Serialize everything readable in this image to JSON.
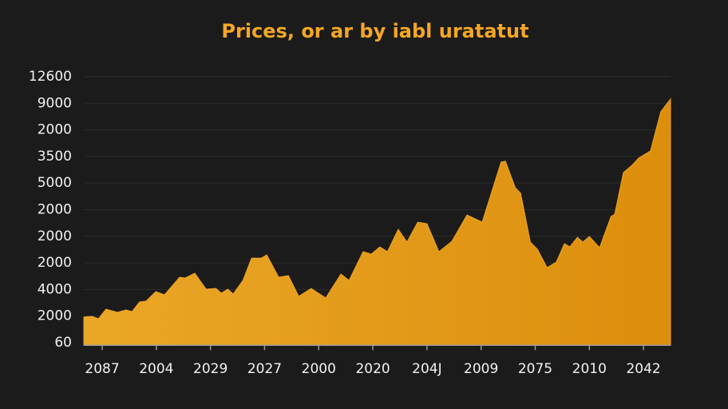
{
  "chart_data": {
    "type": "area",
    "title": "Prices, or ar by iabl uratatut",
    "color": "#eea423",
    "grid": true,
    "x": [
      -0.34,
      -0.19,
      -0.07,
      0.07,
      0.28,
      0.44,
      0.55,
      0.69,
      0.81,
      0.99,
      1.15,
      1.43,
      1.53,
      1.71,
      1.92,
      2.1,
      2.2,
      2.32,
      2.42,
      2.6,
      2.76,
      2.94,
      3.04,
      3.26,
      3.44,
      3.63,
      3.86,
      4.13,
      4.41,
      4.56,
      4.82,
      4.97,
      5.13,
      5.27,
      5.47,
      5.63,
      5.83,
      6.0,
      6.22,
      6.46,
      6.74,
      7.02,
      7.37,
      7.45,
      7.63,
      7.73,
      7.91,
      8.04,
      8.22,
      8.39,
      8.54,
      8.64,
      8.78,
      8.88,
      9.0,
      9.19,
      9.4,
      9.47,
      9.63,
      9.79,
      9.91,
      10.13,
      10.32,
      10.5
    ],
    "values": [
      0.96,
      0.99,
      0.9,
      1.26,
      1.14,
      1.23,
      1.17,
      1.53,
      1.56,
      1.92,
      1.8,
      2.46,
      2.43,
      2.61,
      2.01,
      2.04,
      1.86,
      2.01,
      1.83,
      2.34,
      3.18,
      3.18,
      3.3,
      2.46,
      2.52,
      1.74,
      2.04,
      1.68,
      2.58,
      2.34,
      3.42,
      3.33,
      3.6,
      3.42,
      4.26,
      3.78,
      4.53,
      4.47,
      3.42,
      3.81,
      4.8,
      4.53,
      6.79,
      6.82,
      5.83,
      5.62,
      3.78,
      3.51,
      2.82,
      3.03,
      3.72,
      3.6,
      3.96,
      3.78,
      3.99,
      3.57,
      4.74,
      4.83,
      6.4,
      6.67,
      6.94,
      7.21,
      8.68,
      9.16
    ],
    "xlim": [
      -0.34,
      10.5
    ],
    "xticks": [
      {
        "value": 0,
        "label": "2087"
      },
      {
        "value": 1,
        "label": "2004"
      },
      {
        "value": 2,
        "label": "2029"
      },
      {
        "value": 3,
        "label": "2027"
      },
      {
        "value": 4,
        "label": "2000"
      },
      {
        "value": 5,
        "label": "2020"
      },
      {
        "value": 6,
        "label": "204J"
      },
      {
        "value": 7,
        "label": "2009"
      },
      {
        "value": 8,
        "label": "2075"
      },
      {
        "value": 9,
        "label": "2010"
      },
      {
        "value": 10,
        "label": "2042"
      }
    ],
    "ylim": [
      -0.1,
      10.2
    ],
    "yticks": [
      {
        "value": 0,
        "label": "60"
      },
      {
        "value": 1,
        "label": "2000"
      },
      {
        "value": 2,
        "label": "4000"
      },
      {
        "value": 3,
        "label": "2000"
      },
      {
        "value": 4,
        "label": "2000"
      },
      {
        "value": 5,
        "label": "2000"
      },
      {
        "value": 6,
        "label": "5000"
      },
      {
        "value": 7,
        "label": "3500"
      },
      {
        "value": 8,
        "label": "2000"
      },
      {
        "value": 9,
        "label": "9000"
      },
      {
        "value": 10,
        "label": "12600"
      }
    ]
  }
}
